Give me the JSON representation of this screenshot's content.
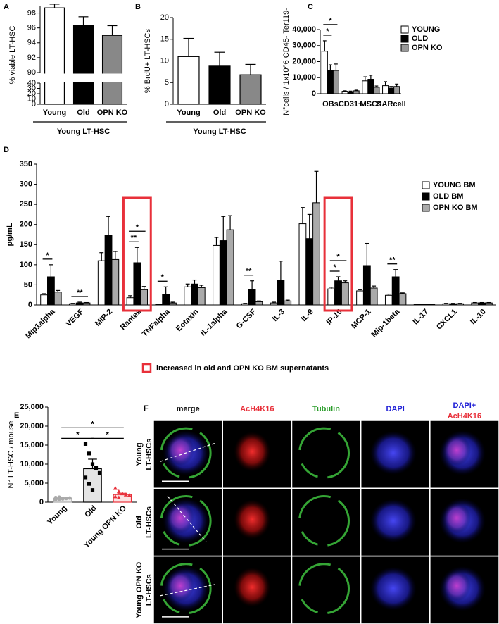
{
  "chart_data": [
    {
      "type": "bar",
      "label": "A",
      "ylabel": "% viable LT-HSC",
      "categories": [
        "Young",
        "Old",
        "OPN KO"
      ],
      "values": [
        98.7,
        96.3,
        95.0
      ],
      "errors": [
        0.5,
        1.2,
        1.3
      ],
      "colors": [
        "#ffffff",
        "#000000",
        "#888888"
      ],
      "ylim": [
        0,
        99
      ],
      "ybreak": [
        40,
        90
      ],
      "yticks": [
        0,
        10,
        20,
        30,
        40,
        90,
        92,
        94,
        96,
        98
      ],
      "group_label": "Young LT-HSC"
    },
    {
      "type": "bar",
      "label": "B",
      "ylabel": "% BrdU+ LT-HSCs",
      "categories": [
        "Young",
        "Old",
        "OPN KO"
      ],
      "values": [
        11.0,
        8.8,
        6.8
      ],
      "errors": [
        4.2,
        3.2,
        2.4
      ],
      "colors": [
        "#ffffff",
        "#000000",
        "#888888"
      ],
      "ylim": [
        0,
        20
      ],
      "yticks": [
        0,
        5,
        10,
        15,
        20
      ],
      "group_label": "Young LT-HSC"
    },
    {
      "type": "grouped_bar",
      "label": "C",
      "ylabel": "N°cells / 1x10^6 CD45- Ter119-",
      "categories": [
        "OBs",
        "CD31+",
        "MSCs",
        "CARcell"
      ],
      "series": [
        {
          "name": "YOUNG",
          "color": "#ffffff",
          "values": [
            26500,
            1500,
            8000,
            5000
          ],
          "errors": [
            6500,
            300,
            2500,
            2500
          ]
        },
        {
          "name": "OLD",
          "color": "#000000",
          "values": [
            14500,
            1200,
            9000,
            3500
          ],
          "errors": [
            3500,
            400,
            2500,
            1000
          ]
        },
        {
          "name": "OPN KO",
          "color": "#999999",
          "values": [
            14500,
            1800,
            4000,
            4500
          ],
          "errors": [
            4000,
            400,
            800,
            1500
          ]
        }
      ],
      "ylim": [
        0,
        40000
      ],
      "yticks": [
        0,
        {
          "value": 10000,
          "label": "10,000"
        },
        {
          "value": 20000,
          "label": "20,000"
        },
        {
          "value": 30000,
          "label": "30,000"
        },
        {
          "value": 40000,
          "label": "40,000"
        }
      ],
      "significance": [
        {
          "label": "*",
          "between": [
            [
              0,
              0
            ],
            [
              0,
              1
            ]
          ]
        },
        {
          "label": "*",
          "between": [
            [
              0,
              0
            ],
            [
              0,
              2
            ]
          ]
        }
      ]
    },
    {
      "type": "grouped_bar",
      "label": "D",
      "ylabel": "pg/mL",
      "categories": [
        "Mip1alpha",
        "VEGF",
        "MIP-2",
        "Rantes",
        "TNFalpha",
        "Eotaxin",
        "IL-1alpha",
        "G-CSF",
        "IL-3",
        "IL-9",
        "IP-10",
        "MCP-1",
        "Mip-1beta",
        "IL-17",
        "CXCL1",
        "IL-10"
      ],
      "series": [
        {
          "name": "YOUNG BM",
          "color": "#ffffff",
          "values": [
            25,
            3,
            110,
            18,
            1,
            45,
            148,
            3,
            5,
            202,
            40,
            35,
            24,
            1,
            3,
            5
          ],
          "errors": [
            3,
            1,
            20,
            5,
            0,
            7,
            20,
            1,
            2,
            40,
            4,
            3,
            3,
            0,
            1,
            1
          ]
        },
        {
          "name": "OLD BM",
          "color": "#000000",
          "values": [
            70,
            5,
            173,
            105,
            27,
            52,
            160,
            38,
            62,
            165,
            60,
            98,
            70,
            1,
            3,
            5
          ],
          "errors": [
            30,
            2,
            47,
            38,
            18,
            10,
            60,
            22,
            47,
            60,
            10,
            55,
            18,
            0,
            1,
            1
          ]
        },
        {
          "name": "OPN KO BM",
          "color": "#aaaaaa",
          "values": [
            32,
            5,
            113,
            38,
            5,
            43,
            187,
            8,
            10,
            254,
            55,
            42,
            28,
            1,
            3,
            5
          ],
          "errors": [
            4,
            1,
            20,
            8,
            2,
            6,
            35,
            2,
            2,
            78,
            5,
            5,
            2,
            0,
            1,
            1
          ]
        }
      ],
      "ylim": [
        0,
        350
      ],
      "yticks": [
        0,
        50,
        100,
        150,
        200,
        250,
        300,
        350
      ],
      "significance": [
        {
          "label": "*",
          "between": [
            [
              0,
              0
            ],
            [
              0,
              1
            ]
          ]
        },
        {
          "label": "**",
          "between": [
            [
              1,
              0
            ],
            [
              1,
              2
            ]
          ]
        },
        {
          "label": "**",
          "between": [
            [
              3,
              0
            ],
            [
              3,
              1
            ]
          ]
        },
        {
          "label": "*",
          "between": [
            [
              3,
              0
            ],
            [
              3,
              2
            ]
          ]
        },
        {
          "label": "*",
          "between": [
            [
              4,
              0
            ],
            [
              4,
              1
            ]
          ]
        },
        {
          "label": "**",
          "between": [
            [
              7,
              0
            ],
            [
              7,
              1
            ]
          ]
        },
        {
          "label": "*",
          "between": [
            [
              10,
              0
            ],
            [
              10,
              1
            ]
          ]
        },
        {
          "label": "*",
          "between": [
            [
              10,
              0
            ],
            [
              10,
              2
            ]
          ]
        },
        {
          "label": "**",
          "between": [
            [
              12,
              0
            ],
            [
              12,
              1
            ]
          ]
        }
      ],
      "highlight": [
        3,
        10
      ],
      "highlight_color": "#e8303a",
      "note": "increased in old and OPN KO BM supernatants"
    },
    {
      "type": "dot_bar",
      "label": "E",
      "ylabel": "N° LT-HSC / mouse",
      "categories": [
        "Young",
        "Old",
        "Young OPN KO"
      ],
      "values": [
        1000,
        8800,
        2000
      ],
      "errors": [
        250,
        2500,
        350
      ],
      "colors": [
        "#eeeeee",
        "#e4e4e4",
        "#fbe3e3"
      ],
      "point_colors": [
        "#aaaaaa",
        "#000000",
        "#e8303a"
      ],
      "markers": [
        "circle",
        "square",
        "triangle"
      ],
      "points": [
        [
          700,
          800,
          900,
          1000,
          1100,
          1200,
          1300,
          900
        ],
        [
          15300,
          12800,
          10000,
          9000,
          7700,
          6500,
          4800,
          3200
        ],
        [
          3700,
          2800,
          2300,
          2000,
          1800,
          1500,
          1200
        ]
      ],
      "ylim": [
        0,
        25000
      ],
      "yticks": [
        0,
        {
          "value": 5000,
          "label": "5,000"
        },
        {
          "value": 10000,
          "label": "10,000"
        },
        {
          "value": 15000,
          "label": "15,000"
        },
        {
          "value": 20000,
          "label": "20,000"
        },
        {
          "value": 25000,
          "label": "25,000"
        }
      ],
      "significance": [
        {
          "label": "*",
          "between": [
            [
              0
            ],
            [
              1
            ]
          ]
        },
        {
          "label": "*",
          "between": [
            [
              1
            ],
            [
              2
            ]
          ]
        },
        {
          "label": "*",
          "between": [
            [
              0
            ],
            [
              2
            ]
          ]
        }
      ]
    }
  ],
  "figure_f": {
    "label": "F",
    "columns": [
      "merge",
      "AcH4K16",
      "Tubulin",
      "DAPI"
    ],
    "column_colors": [
      "#000000",
      "#e8303a",
      "#2a9d2a",
      "#1f1fd6"
    ],
    "merged_column": [
      "DAPI+",
      "AcH4K16"
    ],
    "rows": [
      [
        "Young",
        "LT-HSCs"
      ],
      [
        "Old",
        "LT-HSCs"
      ],
      [
        "Young OPN KO",
        "LT-HSCs"
      ]
    ]
  }
}
